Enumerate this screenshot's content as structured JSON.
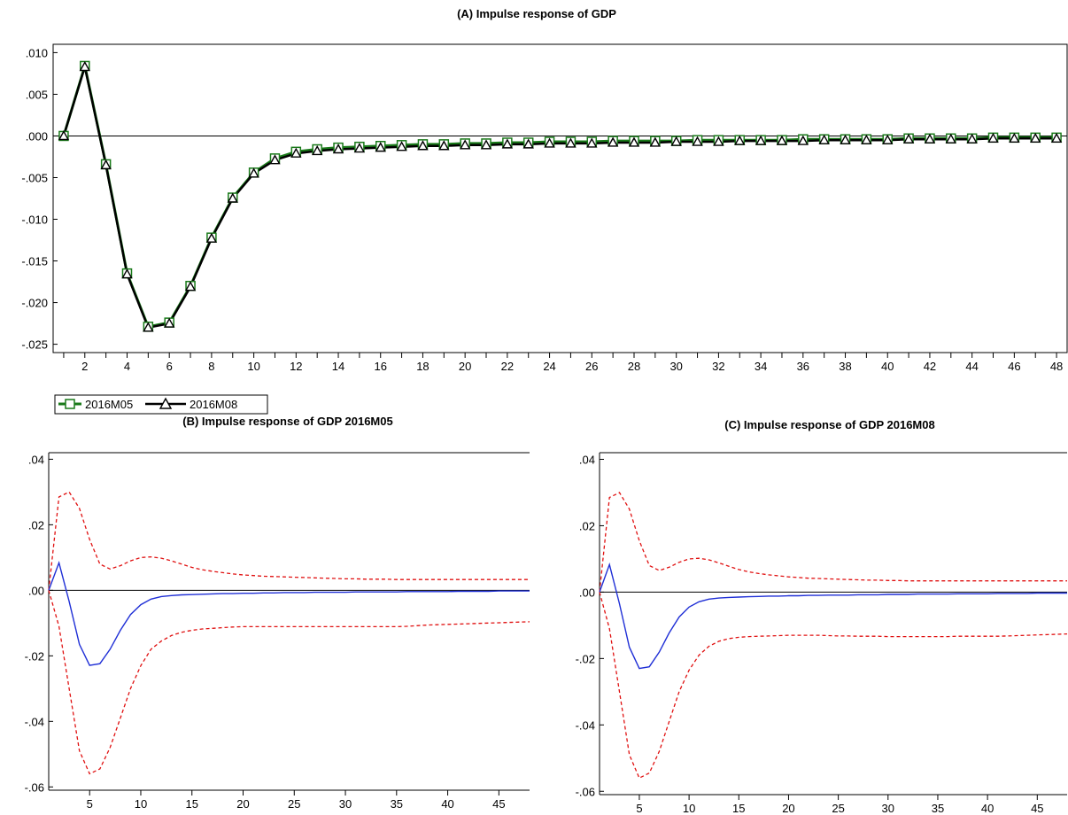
{
  "colors": {
    "series_green": "#1a7a1a",
    "series_black": "#000000",
    "response_blue": "#1f2fd6",
    "band_red": "#e01010"
  },
  "chart_data": [
    {
      "id": "A",
      "type": "line",
      "title": "(A) Impulse response of GDP",
      "xlabel": "",
      "ylabel": "",
      "xlim": [
        0.5,
        48.5
      ],
      "ylim": [
        -0.026,
        0.011
      ],
      "yticks": [
        0.01,
        0.005,
        0.0,
        -0.005,
        -0.01,
        -0.015,
        -0.02,
        -0.025
      ],
      "ytick_labels": [
        ".010",
        ".005",
        ".000",
        "-.005",
        "-.010",
        "-.015",
        "-.020",
        "-.025"
      ],
      "xticks": [
        2,
        4,
        6,
        8,
        10,
        12,
        14,
        16,
        18,
        20,
        22,
        24,
        26,
        28,
        30,
        32,
        34,
        36,
        38,
        40,
        42,
        44,
        46,
        48
      ],
      "xtick_labels": [
        "2",
        "4",
        "6",
        "8",
        "10",
        "12",
        "14",
        "16",
        "18",
        "20",
        "22",
        "24",
        "26",
        "28",
        "30",
        "32",
        "34",
        "36",
        "38",
        "40",
        "42",
        "44",
        "46",
        "48"
      ],
      "zero_line": true,
      "legend": {
        "placement": "bottom-left"
      },
      "series": [
        {
          "name": "2016M05",
          "marker": "square",
          "color": "#1a7a1a",
          "x": [
            1,
            2,
            3,
            4,
            5,
            6,
            7,
            8,
            9,
            10,
            11,
            12,
            13,
            14,
            15,
            16,
            17,
            18,
            19,
            20,
            21,
            22,
            23,
            24,
            25,
            26,
            27,
            28,
            29,
            30,
            31,
            32,
            33,
            34,
            35,
            36,
            37,
            38,
            39,
            40,
            41,
            42,
            43,
            44,
            45,
            46,
            47,
            48
          ],
          "y": [
            0.0,
            0.0084,
            -0.0034,
            -0.0165,
            -0.0229,
            -0.0224,
            -0.018,
            -0.0122,
            -0.0074,
            -0.0044,
            -0.0027,
            -0.0019,
            -0.0016,
            -0.0014,
            -0.0013,
            -0.0012,
            -0.0011,
            -0.001,
            -0.001,
            -0.0009,
            -0.0009,
            -0.0008,
            -0.0008,
            -0.0007,
            -0.0007,
            -0.0007,
            -0.0006,
            -0.0006,
            -0.0006,
            -0.0006,
            -0.0005,
            -0.0005,
            -0.0005,
            -0.0005,
            -0.0005,
            -0.0004,
            -0.0004,
            -0.0004,
            -0.0004,
            -0.0004,
            -0.0003,
            -0.0003,
            -0.0003,
            -0.0003,
            -0.0002,
            -0.0002,
            -0.0002,
            -0.0002
          ]
        },
        {
          "name": "2016M08",
          "marker": "triangle",
          "color": "#000000",
          "x": [
            1,
            2,
            3,
            4,
            5,
            6,
            7,
            8,
            9,
            10,
            11,
            12,
            13,
            14,
            15,
            16,
            17,
            18,
            19,
            20,
            21,
            22,
            23,
            24,
            25,
            26,
            27,
            28,
            29,
            30,
            31,
            32,
            33,
            34,
            35,
            36,
            37,
            38,
            39,
            40,
            41,
            42,
            43,
            44,
            45,
            46,
            47,
            48
          ],
          "y": [
            0.0,
            0.0083,
            -0.0035,
            -0.0166,
            -0.023,
            -0.0225,
            -0.0181,
            -0.0123,
            -0.0075,
            -0.0045,
            -0.0029,
            -0.0021,
            -0.0018,
            -0.0016,
            -0.0015,
            -0.0014,
            -0.0013,
            -0.0012,
            -0.0012,
            -0.0011,
            -0.0011,
            -0.001,
            -0.001,
            -0.0009,
            -0.0009,
            -0.0009,
            -0.0008,
            -0.0008,
            -0.0008,
            -0.0007,
            -0.0007,
            -0.0007,
            -0.0006,
            -0.0006,
            -0.0006,
            -0.0006,
            -0.0005,
            -0.0005,
            -0.0005,
            -0.0005,
            -0.0004,
            -0.0004,
            -0.0004,
            -0.0004,
            -0.0003,
            -0.0003,
            -0.0003,
            -0.0003
          ]
        }
      ]
    },
    {
      "id": "B",
      "type": "line",
      "title": "(B) Impulse response of GDP 2016M05",
      "xlabel": "",
      "ylabel": "",
      "xlim": [
        1,
        48
      ],
      "ylim": [
        -0.061,
        0.042
      ],
      "yticks": [
        0.04,
        0.02,
        0.0,
        -0.02,
        -0.04,
        -0.06
      ],
      "ytick_labels": [
        ".04",
        ".02",
        ".00",
        "-.02",
        "-.04",
        "-.06"
      ],
      "xticks": [
        5,
        10,
        15,
        20,
        25,
        30,
        35,
        40,
        45
      ],
      "xtick_labels": [
        "5",
        "10",
        "15",
        "20",
        "25",
        "30",
        "35",
        "40",
        "45"
      ],
      "zero_line": true,
      "x": [
        1,
        2,
        3,
        4,
        5,
        6,
        7,
        8,
        9,
        10,
        11,
        12,
        13,
        14,
        15,
        16,
        17,
        18,
        19,
        20,
        21,
        22,
        23,
        24,
        25,
        26,
        27,
        28,
        29,
        30,
        31,
        32,
        33,
        34,
        35,
        36,
        37,
        38,
        39,
        40,
        41,
        42,
        43,
        44,
        45,
        46,
        47,
        48
      ],
      "response": [
        0.0,
        0.0084,
        -0.0034,
        -0.0165,
        -0.0229,
        -0.0224,
        -0.018,
        -0.0122,
        -0.0074,
        -0.0044,
        -0.0027,
        -0.0019,
        -0.0016,
        -0.0014,
        -0.0013,
        -0.0012,
        -0.0011,
        -0.001,
        -0.001,
        -0.0009,
        -0.0009,
        -0.0008,
        -0.0008,
        -0.0007,
        -0.0007,
        -0.0007,
        -0.0006,
        -0.0006,
        -0.0006,
        -0.0006,
        -0.0005,
        -0.0005,
        -0.0005,
        -0.0005,
        -0.0005,
        -0.0004,
        -0.0004,
        -0.0004,
        -0.0004,
        -0.0004,
        -0.0003,
        -0.0003,
        -0.0003,
        -0.0003,
        -0.0002,
        -0.0002,
        -0.0002,
        -0.0002
      ],
      "upper": [
        0.0,
        0.0285,
        0.03,
        0.025,
        0.0155,
        0.008,
        0.0065,
        0.0075,
        0.009,
        0.01,
        0.0102,
        0.0098,
        0.009,
        0.008,
        0.007,
        0.0063,
        0.0058,
        0.0054,
        0.005,
        0.0047,
        0.0045,
        0.0043,
        0.0042,
        0.0041,
        0.004,
        0.0039,
        0.0038,
        0.0037,
        0.0036,
        0.0035,
        0.0035,
        0.0034,
        0.0034,
        0.0034,
        0.0033,
        0.0033,
        0.0033,
        0.0033,
        0.0033,
        0.0033,
        0.0033,
        0.0033,
        0.0033,
        0.0033,
        0.0033,
        0.0033,
        0.0033,
        0.0033
      ],
      "lower": [
        0.0,
        -0.011,
        -0.03,
        -0.049,
        -0.056,
        -0.0545,
        -0.048,
        -0.039,
        -0.03,
        -0.023,
        -0.018,
        -0.0155,
        -0.0138,
        -0.0128,
        -0.0122,
        -0.0118,
        -0.0116,
        -0.0114,
        -0.0112,
        -0.0111,
        -0.0111,
        -0.0111,
        -0.0111,
        -0.0111,
        -0.0111,
        -0.0111,
        -0.0111,
        -0.0111,
        -0.0111,
        -0.0111,
        -0.0111,
        -0.0111,
        -0.0111,
        -0.0111,
        -0.0111,
        -0.011,
        -0.0108,
        -0.0106,
        -0.0105,
        -0.0104,
        -0.0103,
        -0.0102,
        -0.0101,
        -0.01,
        -0.0099,
        -0.0098,
        -0.0097,
        -0.0096
      ]
    },
    {
      "id": "C",
      "type": "line",
      "title": "(C) Impulse response of GDP 2016M08",
      "xlabel": "",
      "ylabel": "",
      "xlim": [
        1,
        48
      ],
      "ylim": [
        -0.061,
        0.042
      ],
      "yticks": [
        0.04,
        0.02,
        0.0,
        -0.02,
        -0.04,
        -0.06
      ],
      "ytick_labels": [
        ".04",
        ".02",
        ".00",
        "-.02",
        "-.04",
        "-.06"
      ],
      "xticks": [
        5,
        10,
        15,
        20,
        25,
        30,
        35,
        40,
        45
      ],
      "xtick_labels": [
        "5",
        "10",
        "15",
        "20",
        "25",
        "30",
        "35",
        "40",
        "45"
      ],
      "zero_line": true,
      "x": [
        1,
        2,
        3,
        4,
        5,
        6,
        7,
        8,
        9,
        10,
        11,
        12,
        13,
        14,
        15,
        16,
        17,
        18,
        19,
        20,
        21,
        22,
        23,
        24,
        25,
        26,
        27,
        28,
        29,
        30,
        31,
        32,
        33,
        34,
        35,
        36,
        37,
        38,
        39,
        40,
        41,
        42,
        43,
        44,
        45,
        46,
        47,
        48
      ],
      "response": [
        0.0,
        0.0083,
        -0.0035,
        -0.0166,
        -0.023,
        -0.0225,
        -0.0181,
        -0.0123,
        -0.0075,
        -0.0045,
        -0.0029,
        -0.0021,
        -0.0018,
        -0.0016,
        -0.0015,
        -0.0014,
        -0.0013,
        -0.0012,
        -0.0012,
        -0.0011,
        -0.0011,
        -0.001,
        -0.001,
        -0.0009,
        -0.0009,
        -0.0009,
        -0.0008,
        -0.0008,
        -0.0008,
        -0.0007,
        -0.0007,
        -0.0007,
        -0.0006,
        -0.0006,
        -0.0006,
        -0.0006,
        -0.0005,
        -0.0005,
        -0.0005,
        -0.0005,
        -0.0004,
        -0.0004,
        -0.0004,
        -0.0004,
        -0.0003,
        -0.0003,
        -0.0003,
        -0.0003
      ],
      "upper": [
        0.0,
        0.0285,
        0.03,
        0.025,
        0.0155,
        0.008,
        0.0065,
        0.0075,
        0.009,
        0.01,
        0.0102,
        0.0097,
        0.0088,
        0.0078,
        0.0068,
        0.0061,
        0.0056,
        0.0052,
        0.0049,
        0.0046,
        0.0044,
        0.0042,
        0.0041,
        0.004,
        0.0039,
        0.0038,
        0.0037,
        0.0036,
        0.0036,
        0.0035,
        0.0035,
        0.0034,
        0.0034,
        0.0034,
        0.0034,
        0.0034,
        0.0034,
        0.0034,
        0.0034,
        0.0034,
        0.0034,
        0.0034,
        0.0034,
        0.0034,
        0.0034,
        0.0034,
        0.0034,
        0.0034
      ],
      "lower": [
        0.0,
        -0.011,
        -0.03,
        -0.049,
        -0.056,
        -0.0545,
        -0.048,
        -0.039,
        -0.03,
        -0.0235,
        -0.019,
        -0.0163,
        -0.0148,
        -0.014,
        -0.0136,
        -0.0134,
        -0.0133,
        -0.0132,
        -0.0131,
        -0.013,
        -0.013,
        -0.013,
        -0.013,
        -0.0131,
        -0.0132,
        -0.0132,
        -0.0133,
        -0.0133,
        -0.0133,
        -0.0134,
        -0.0134,
        -0.0134,
        -0.0134,
        -0.0134,
        -0.0134,
        -0.0134,
        -0.0133,
        -0.0133,
        -0.0133,
        -0.0133,
        -0.0133,
        -0.0132,
        -0.0131,
        -0.013,
        -0.0129,
        -0.0128,
        -0.0127,
        -0.0126
      ]
    }
  ]
}
